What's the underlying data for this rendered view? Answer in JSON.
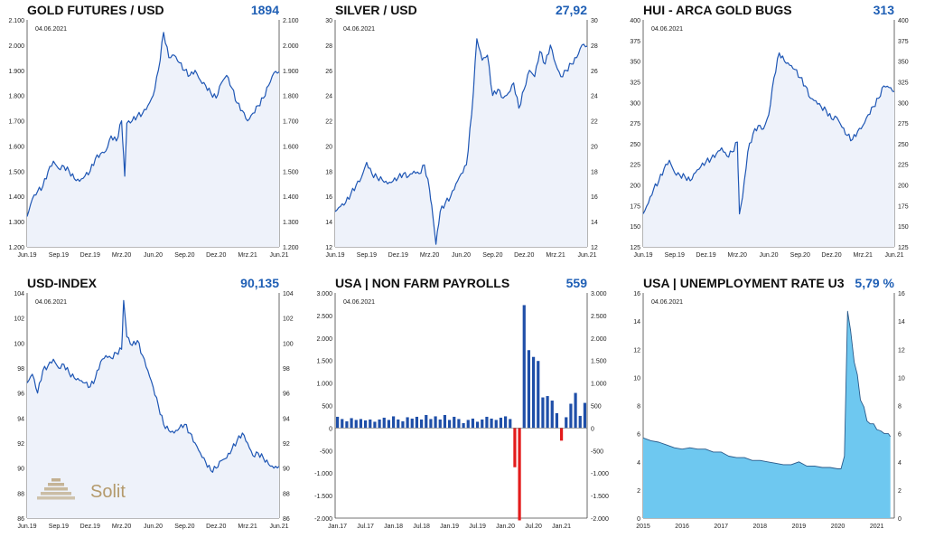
{
  "colors": {
    "line": "#1e56b4",
    "fill_light": "#eef2fa",
    "area": "#6ec8f0",
    "bar_pos": "#1f4fa8",
    "bar_neg": "#e31b1b",
    "value": "#1f5fb5",
    "logo": "#b49a6c"
  },
  "watermark": {
    "text": "Solit",
    "icon": "pyramid-logo-icon"
  },
  "chart_data": [
    {
      "id": "gold",
      "type": "area",
      "title": "GOLD FUTURES / USD",
      "value": "1894",
      "date": "04.06.2021",
      "ylim": [
        1200,
        2100
      ],
      "yticks": [
        1200,
        1300,
        1400,
        1500,
        1600,
        1700,
        1800,
        1900,
        2000,
        2100
      ],
      "ytick_labels": [
        "1.200",
        "1.300",
        "1.400",
        "1.500",
        "1.600",
        "1.700",
        "1.800",
        "1.900",
        "2.000",
        "2.100"
      ],
      "xlim": [
        0,
        24
      ],
      "x_ticks": [
        0,
        3,
        6,
        9,
        12,
        15,
        18,
        21,
        24
      ],
      "x_tick_labels": [
        "Jun.19",
        "Sep.19",
        "Dez.19",
        "Mrz.20",
        "Jun.20",
        "Sep.20",
        "Dez.20",
        "Mrz.21",
        "Jun.21"
      ],
      "x": [
        0,
        0.5,
        1,
        1.5,
        2,
        2.5,
        3,
        3.5,
        4,
        4.5,
        5,
        5.5,
        6,
        6.5,
        7,
        7.5,
        8,
        8.5,
        9,
        9.3,
        9.5,
        10,
        10.5,
        11,
        11.5,
        12,
        12.5,
        13,
        13.5,
        14,
        14.5,
        15,
        15.5,
        16,
        16.5,
        17,
        17.5,
        18,
        18.5,
        19,
        19.5,
        20,
        20.5,
        21,
        21.5,
        22,
        22.5,
        23,
        23.5,
        24
      ],
      "y": [
        1320,
        1390,
        1420,
        1440,
        1500,
        1540,
        1510,
        1520,
        1500,
        1470,
        1460,
        1480,
        1500,
        1550,
        1570,
        1580,
        1640,
        1620,
        1700,
        1480,
        1690,
        1700,
        1720,
        1730,
        1760,
        1800,
        1900,
        2050,
        1950,
        1960,
        1930,
        1900,
        1880,
        1900,
        1860,
        1840,
        1810,
        1790,
        1850,
        1880,
        1830,
        1770,
        1740,
        1700,
        1730,
        1760,
        1790,
        1840,
        1890,
        1894
      ]
    },
    {
      "id": "silver",
      "type": "area",
      "title": "SILVER / USD",
      "value": "27,92",
      "date": "04.06.2021",
      "ylim": [
        12,
        30
      ],
      "yticks": [
        12,
        14,
        16,
        18,
        20,
        22,
        24,
        26,
        28,
        30
      ],
      "ytick_labels": [
        "12",
        "14",
        "16",
        "18",
        "20",
        "22",
        "24",
        "26",
        "28",
        "30"
      ],
      "xlim": [
        0,
        24
      ],
      "x_ticks": [
        0,
        3,
        6,
        9,
        12,
        15,
        18,
        21,
        24
      ],
      "x_tick_labels": [
        "Jun.19",
        "Sep.19",
        "Dez.19",
        "Mrz.20",
        "Jun.20",
        "Sep.20",
        "Dez.20",
        "Mrz.21",
        "Jun.21"
      ],
      "x": [
        0,
        0.5,
        1,
        1.5,
        2,
        2.5,
        3,
        3.5,
        4,
        4.5,
        5,
        5.5,
        6,
        6.5,
        7,
        7.5,
        8,
        8.5,
        9,
        9.3,
        9.6,
        10,
        10.5,
        11,
        11.5,
        12,
        12.5,
        13,
        13.5,
        14,
        14.5,
        15,
        15.5,
        16,
        16.5,
        17,
        17.5,
        18,
        18.5,
        19,
        19.5,
        20,
        20.5,
        21,
        21.5,
        22,
        22.5,
        23,
        23.5,
        24
      ],
      "y": [
        14.8,
        15.2,
        15.5,
        16.2,
        16.9,
        17.5,
        18.7,
        17.8,
        17.5,
        17.3,
        17.0,
        17.2,
        17.5,
        17.8,
        17.6,
        18.0,
        17.8,
        18.5,
        16.5,
        14.5,
        12.2,
        14.8,
        15.5,
        16.0,
        17.0,
        17.8,
        18.5,
        22.5,
        28.5,
        26.8,
        27.2,
        24.0,
        24.5,
        23.8,
        24.2,
        25.0,
        23.0,
        24.5,
        26.0,
        25.5,
        27.5,
        26.5,
        28.0,
        26.5,
        25.5,
        26.0,
        26.5,
        27.0,
        28.0,
        27.92
      ]
    },
    {
      "id": "hui",
      "type": "area",
      "title": "HUI - ARCA GOLD BUGS",
      "value": "313",
      "date": "04.06.2021",
      "ylim": [
        125,
        400
      ],
      "yticks": [
        125,
        150,
        175,
        200,
        225,
        250,
        275,
        300,
        325,
        350,
        375,
        400
      ],
      "ytick_labels": [
        "125",
        "150",
        "175",
        "200",
        "225",
        "250",
        "275",
        "300",
        "325",
        "350",
        "375",
        "400"
      ],
      "xlim": [
        0,
        24
      ],
      "x_ticks": [
        0,
        3,
        6,
        9,
        12,
        15,
        18,
        21,
        24
      ],
      "x_tick_labels": [
        "Jun.19",
        "Sep.19",
        "Dez.19",
        "Mrz.20",
        "Jun.20",
        "Sep.20",
        "Dez.20",
        "Mrz.21",
        "Jun.21"
      ],
      "x": [
        0,
        0.5,
        1,
        1.5,
        2,
        2.5,
        3,
        3.5,
        4,
        4.5,
        5,
        5.5,
        6,
        6.5,
        7,
        7.5,
        8,
        8.5,
        9,
        9.2,
        9.5,
        10,
        10.5,
        11,
        11.5,
        12,
        12.5,
        13,
        13.5,
        14,
        14.5,
        15,
        15.5,
        16,
        16.5,
        17,
        17.5,
        18,
        18.5,
        19,
        19.5,
        20,
        20.5,
        21,
        21.5,
        22,
        22.5,
        23,
        23.5,
        24
      ],
      "y": [
        165,
        178,
        195,
        205,
        220,
        230,
        215,
        212,
        210,
        205,
        215,
        222,
        228,
        232,
        238,
        245,
        235,
        240,
        252,
        165,
        185,
        240,
        262,
        272,
        268,
        285,
        330,
        360,
        350,
        345,
        340,
        330,
        320,
        305,
        302,
        295,
        290,
        280,
        282,
        270,
        260,
        255,
        265,
        272,
        285,
        295,
        305,
        320,
        318,
        313
      ]
    },
    {
      "id": "usd",
      "type": "area",
      "title": "USD-INDEX",
      "value": "90,135",
      "date": "04.06.2021",
      "ylim": [
        86,
        104
      ],
      "yticks": [
        86,
        88,
        90,
        92,
        94,
        96,
        98,
        100,
        102,
        104
      ],
      "ytick_labels": [
        "86",
        "88",
        "90",
        "92",
        "94",
        "96",
        "98",
        "100",
        "102",
        "104"
      ],
      "xlim": [
        0,
        24
      ],
      "x_ticks": [
        0,
        3,
        6,
        9,
        12,
        15,
        18,
        21,
        24
      ],
      "x_tick_labels": [
        "Jun.19",
        "Sep.19",
        "Dez.19",
        "Mrz.20",
        "Jun.20",
        "Sep.20",
        "Dez.20",
        "Mrz.21",
        "Jun.21"
      ],
      "x": [
        0,
        0.5,
        1,
        1.5,
        2,
        2.5,
        3,
        3.5,
        4,
        4.5,
        5,
        5.5,
        6,
        6.5,
        7,
        7.5,
        8,
        8.5,
        9,
        9.2,
        9.5,
        10,
        10.5,
        11,
        11.5,
        12,
        12.5,
        13,
        13.5,
        14,
        14.5,
        15,
        15.5,
        16,
        16.5,
        17,
        17.5,
        18,
        18.5,
        19,
        19.5,
        20,
        20.5,
        21,
        21.5,
        22,
        22.5,
        23,
        23.5,
        24
      ],
      "y": [
        96.8,
        97.5,
        96.0,
        97.8,
        98.2,
        98.7,
        98.0,
        98.3,
        97.6,
        97.2,
        97.0,
        96.8,
        96.5,
        97.2,
        98.5,
        99.0,
        98.8,
        99.2,
        99.5,
        103.4,
        100.5,
        99.8,
        100.2,
        99.0,
        97.8,
        96.5,
        95.0,
        93.5,
        93.0,
        92.8,
        93.2,
        93.5,
        92.8,
        92.0,
        91.2,
        90.5,
        89.8,
        90.0,
        90.6,
        90.8,
        91.5,
        92.2,
        92.8,
        92.0,
        91.0,
        91.2,
        90.8,
        90.3,
        90.0,
        90.135
      ]
    },
    {
      "id": "nfp",
      "type": "bar",
      "title": "USA | NON FARM PAYROLLS",
      "value": "559",
      "date": "04.06.2021",
      "ylim": [
        -2000,
        3000
      ],
      "yticks": [
        -2000,
        -1500,
        -1000,
        -500,
        0,
        500,
        1000,
        1500,
        2000,
        2500,
        3000
      ],
      "ytick_labels": [
        "-2.000",
        "-1.500",
        "-1.000",
        "-500",
        "0",
        "500",
        "1.000",
        "1.500",
        "2.000",
        "2.500",
        "3.000"
      ],
      "xlim": [
        0,
        54
      ],
      "x_ticks": [
        0,
        6,
        12,
        18,
        24,
        30,
        36,
        42,
        48
      ],
      "x_tick_labels": [
        "Jan.17",
        "Jul.17",
        "Jan.18",
        "Jul.18",
        "Jan.19",
        "Jul.19",
        "Jan.20",
        "Jul.20",
        "Jan.21"
      ],
      "values": [
        250,
        200,
        150,
        220,
        180,
        200,
        170,
        190,
        140,
        190,
        230,
        180,
        260,
        190,
        150,
        240,
        210,
        250,
        190,
        290,
        200,
        260,
        190,
        290,
        180,
        250,
        200,
        110,
        180,
        210,
        140,
        190,
        250,
        210,
        180,
        230,
        260,
        200,
        -870,
        -2050,
        2730,
        1730,
        1580,
        1490,
        680,
        710,
        610,
        330,
        -280,
        240,
        540,
        780,
        270,
        559
      ]
    },
    {
      "id": "unemp",
      "type": "area",
      "title": "USA | UNEMPLOYMENT RATE U3",
      "value": "5,79 %",
      "date": "04.06.2021",
      "ylim": [
        0,
        16
      ],
      "yticks": [
        0,
        2,
        4,
        6,
        8,
        10,
        12,
        14,
        16
      ],
      "ytick_labels": [
        "0",
        "2",
        "4",
        "6",
        "8",
        "10",
        "12",
        "14",
        "16"
      ],
      "xlim": [
        2015,
        2021.45
      ],
      "x_ticks": [
        2015,
        2016,
        2017,
        2018,
        2019,
        2020,
        2021
      ],
      "x_tick_labels": [
        "2015",
        "2016",
        "2017",
        "2018",
        "2019",
        "2020",
        "2021"
      ],
      "x": [
        2015,
        2015.2,
        2015.4,
        2015.6,
        2015.8,
        2016,
        2016.2,
        2016.4,
        2016.6,
        2016.8,
        2017,
        2017.2,
        2017.4,
        2017.6,
        2017.8,
        2018,
        2018.2,
        2018.4,
        2018.6,
        2018.8,
        2019,
        2019.2,
        2019.4,
        2019.6,
        2019.8,
        2020,
        2020.08,
        2020.17,
        2020.25,
        2020.33,
        2020.42,
        2020.5,
        2020.58,
        2020.67,
        2020.75,
        2020.83,
        2020.92,
        2021,
        2021.1,
        2021.2,
        2021.3,
        2021.35
      ],
      "y": [
        5.7,
        5.5,
        5.4,
        5.2,
        5.0,
        4.9,
        5.0,
        4.9,
        4.9,
        4.7,
        4.7,
        4.4,
        4.3,
        4.3,
        4.1,
        4.1,
        4.0,
        3.9,
        3.8,
        3.8,
        4.0,
        3.7,
        3.7,
        3.6,
        3.6,
        3.5,
        3.5,
        4.4,
        14.7,
        13.3,
        11.1,
        10.2,
        8.4,
        7.9,
        6.9,
        6.7,
        6.7,
        6.3,
        6.2,
        6.0,
        6.0,
        5.79
      ]
    }
  ]
}
